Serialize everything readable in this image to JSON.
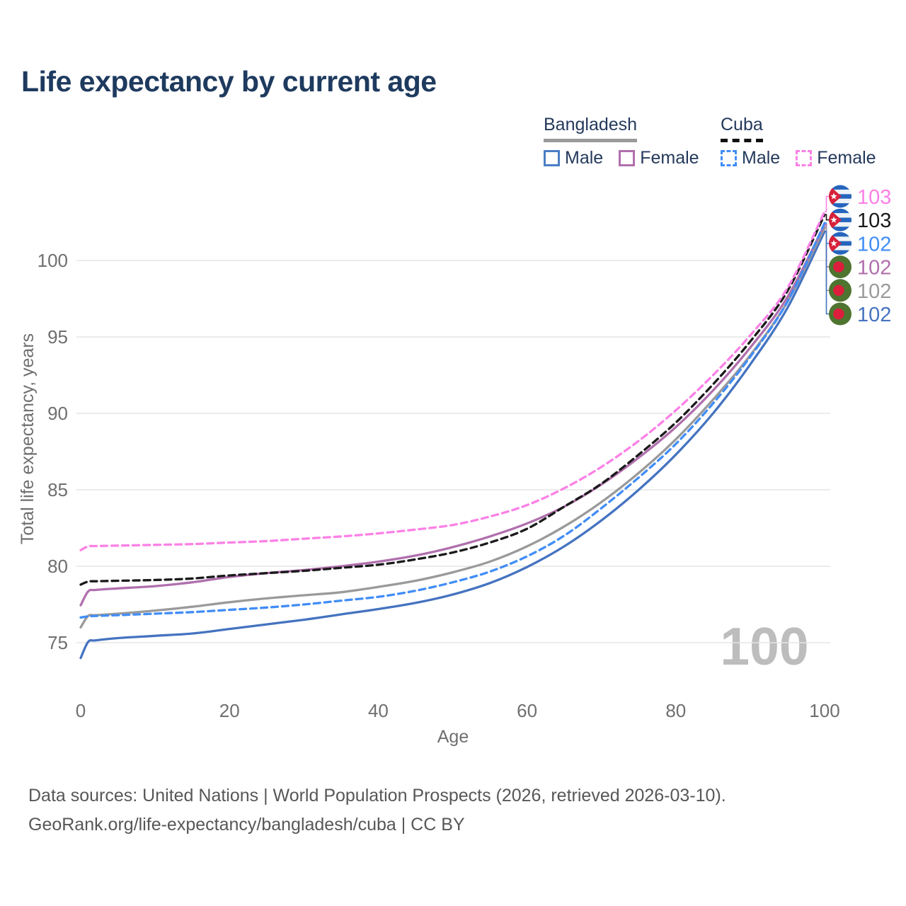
{
  "title": "Life expectancy by current age",
  "legend": {
    "bangladesh": {
      "label": "Bangladesh",
      "male": "Male",
      "female": "Female"
    },
    "cuba": {
      "label": "Cuba",
      "male": "Male",
      "female": "Female"
    }
  },
  "chart_data": {
    "type": "line",
    "title": "Life expectancy by current age",
    "xlabel": "Age",
    "ylabel": "Total life expectancy, years",
    "xlim": [
      0,
      100
    ],
    "ylim": [
      73.5,
      104
    ],
    "xticks": [
      0,
      20,
      40,
      60,
      80,
      100
    ],
    "yticks": [
      75,
      80,
      85,
      90,
      95,
      100
    ],
    "grid": "horizontal-only",
    "legend_position": "top-right",
    "watermark": "100",
    "x": [
      0,
      1,
      2,
      5,
      10,
      15,
      20,
      25,
      30,
      35,
      40,
      45,
      50,
      55,
      60,
      65,
      70,
      75,
      80,
      85,
      90,
      95,
      100
    ],
    "series": [
      {
        "name": "Bangladesh Male",
        "country": "Bangladesh",
        "sex": "Male",
        "flag": "bangladesh",
        "color": "#4573c0",
        "dashed": false,
        "end_label": "102",
        "values": [
          74.0,
          75.05,
          75.15,
          75.3,
          75.45,
          75.6,
          75.9,
          76.2,
          76.5,
          76.85,
          77.2,
          77.6,
          78.15,
          78.9,
          79.95,
          81.3,
          83.0,
          85.0,
          87.3,
          90.0,
          93.2,
          96.9,
          101.9
        ]
      },
      {
        "name": "Bangladesh",
        "country": "Bangladesh",
        "sex": "Both",
        "flag": "bangladesh",
        "color": "#9a9a9a",
        "dashed": false,
        "end_label": "102",
        "values": [
          76.0,
          76.75,
          76.8,
          76.9,
          77.1,
          77.35,
          77.65,
          77.9,
          78.1,
          78.3,
          78.65,
          79.05,
          79.6,
          80.3,
          81.3,
          82.6,
          84.2,
          86.1,
          88.3,
          90.9,
          93.8,
          97.3,
          102.15
        ]
      },
      {
        "name": "Bangladesh Female",
        "country": "Bangladesh",
        "sex": "Female",
        "flag": "bangladesh",
        "color": "#b06fad",
        "dashed": false,
        "end_label": "102",
        "values": [
          77.45,
          78.35,
          78.45,
          78.55,
          78.7,
          78.95,
          79.3,
          79.55,
          79.75,
          80.0,
          80.3,
          80.7,
          81.25,
          81.95,
          82.8,
          83.9,
          85.35,
          87.1,
          89.1,
          91.5,
          94.3,
          97.6,
          102.35
        ]
      },
      {
        "name": "Cuba Male",
        "country": "Cuba",
        "sex": "Male",
        "flag": "cuba",
        "color": "#418df6",
        "dashed": true,
        "end_label": "102",
        "values": [
          76.65,
          76.72,
          76.75,
          76.8,
          76.9,
          77.0,
          77.15,
          77.3,
          77.5,
          77.75,
          78.0,
          78.4,
          78.95,
          79.65,
          80.65,
          82.0,
          83.8,
          85.8,
          88.0,
          90.65,
          93.7,
          97.3,
          102.45
        ]
      },
      {
        "name": "Cuba",
        "country": "Cuba",
        "sex": "Both",
        "flag": "cuba",
        "color": "#1a1a1a",
        "dashed": true,
        "end_label": "103",
        "values": [
          78.8,
          79.0,
          79.02,
          79.05,
          79.1,
          79.2,
          79.4,
          79.55,
          79.7,
          79.9,
          80.1,
          80.45,
          80.9,
          81.55,
          82.45,
          83.9,
          85.4,
          87.3,
          89.4,
          91.9,
          94.7,
          98.0,
          103.0
        ]
      },
      {
        "name": "Cuba Female",
        "country": "Cuba",
        "sex": "Female",
        "flag": "cuba",
        "color": "#fb81e6",
        "dashed": true,
        "end_label": "103",
        "values": [
          81.05,
          81.3,
          81.32,
          81.35,
          81.4,
          81.45,
          81.55,
          81.65,
          81.8,
          81.95,
          82.15,
          82.4,
          82.7,
          83.25,
          84.0,
          85.1,
          86.5,
          88.2,
          90.2,
          92.5,
          95.1,
          98.2,
          103.2
        ]
      }
    ]
  },
  "footer": {
    "line1": "Data sources: United Nations | World Population Prospects (2026, retrieved 2026-03-10).",
    "line2": "GeoRank.org/life-expectancy/bangladesh/cuba | CC BY"
  }
}
